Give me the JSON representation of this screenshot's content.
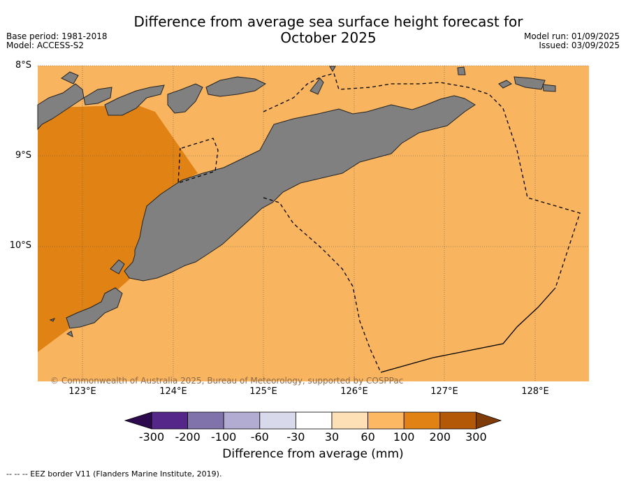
{
  "title_line1": "Difference from average sea surface height forecast for",
  "title_line2": "October 2025",
  "base_period": "Base period: 1981-2018",
  "model": "Model: ACCESS-S2",
  "model_run": "Model run: 01/09/2025",
  "issued": "Issued: 03/09/2025",
  "lat_labels": [
    "8°S",
    "9°S",
    "10°S"
  ],
  "lon_labels": [
    "123°E",
    "124°E",
    "125°E",
    "126°E",
    "127°E",
    "128°E"
  ],
  "copyright": "© Commonwealth of Australia 2025, Bureau of Meteorology, supported by COSPPac",
  "colorbar": {
    "label": "Difference from average (mm)",
    "ticks": [
      "-300",
      "-200",
      "-100",
      "-60",
      "-30",
      "30",
      "60",
      "100",
      "200",
      "300"
    ],
    "colors": [
      "#2d0a4e",
      "#542788",
      "#8073ac",
      "#b2abd2",
      "#d8daeb",
      "#ffffff",
      "#fee0b6",
      "#fdb863",
      "#e08214",
      "#b35806",
      "#7f3b08"
    ]
  },
  "footnote": "-- -- -- EEZ border V11 (Flanders Marine Institute, 2019).",
  "map_colors": {
    "ocean_60_100": "#f9b45f",
    "ocean_100_200": "#e08214",
    "land": "#808080"
  }
}
